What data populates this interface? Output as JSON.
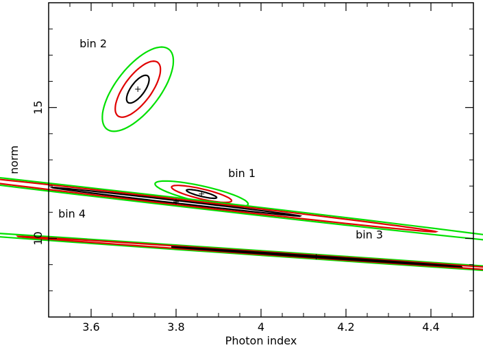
{
  "chart_data": {
    "type": "contour",
    "xlabel": "Photon index",
    "ylabel": "norm",
    "xlim": [
      3.5,
      4.5
    ],
    "ylim": [
      7,
      19
    ],
    "xticks_major": [
      3.6,
      3.8,
      4,
      4.2,
      4.4
    ],
    "xtick_labels": [
      "3.6",
      "3.8",
      "4",
      "4.2",
      "4.4"
    ],
    "yticks_major": [
      10,
      15
    ],
    "ytick_labels": [
      "10",
      "15"
    ],
    "grid": false,
    "legend": "none",
    "contour_colors": {
      "inner": "#000000",
      "middle": "#e00000",
      "outer": "#00e000"
    },
    "series": [
      {
        "name": "bin 1",
        "best_fit": [
          3.86,
          11.7
        ],
        "angle_deg": 10,
        "contours": [
          {
            "level": "inner",
            "a": 0.02,
            "b": 0.17
          },
          {
            "level": "middle",
            "a": 0.042,
            "b": 0.33
          },
          {
            "level": "outer",
            "a": 0.068,
            "b": 0.5
          }
        ]
      },
      {
        "name": "bin 2",
        "best_fit": [
          3.71,
          15.7
        ],
        "angle_deg": 88,
        "contours": [
          {
            "level": "inner",
            "a": 0.53,
            "b": 0.019
          },
          {
            "level": "middle",
            "a": 1.07,
            "b": 0.038
          },
          {
            "level": "outer",
            "a": 1.61,
            "b": 0.062
          }
        ]
      },
      {
        "name": "bin 3",
        "best_fit": [
          4.13,
          9.3
        ],
        "angle_deg": -48,
        "contours": [
          {
            "level": "inner",
            "a": 0.51,
            "b": 0.018
          },
          {
            "level": "middle",
            "a": 1.05,
            "b": 0.036
          },
          {
            "level": "outer",
            "a": 1.6,
            "b": 0.06
          }
        ]
      },
      {
        "name": "bin 4",
        "best_fit": [
          3.8,
          11.4
        ],
        "angle_deg": -62,
        "contours": [
          {
            "level": "inner",
            "a": 0.62,
            "b": 0.024
          },
          {
            "level": "middle",
            "a": 1.3,
            "b": 0.05
          },
          {
            "level": "outer",
            "a": 1.95,
            "b": 0.075
          }
        ]
      }
    ],
    "annotations": [
      {
        "text": "bin 1",
        "x": 3.955,
        "y": 12.35
      },
      {
        "text": "bin 2",
        "x": 3.605,
        "y": 17.3
      },
      {
        "text": "bin 3",
        "x": 4.255,
        "y": 10.0
      },
      {
        "text": "bin 4",
        "x": 3.555,
        "y": 10.8
      }
    ]
  }
}
